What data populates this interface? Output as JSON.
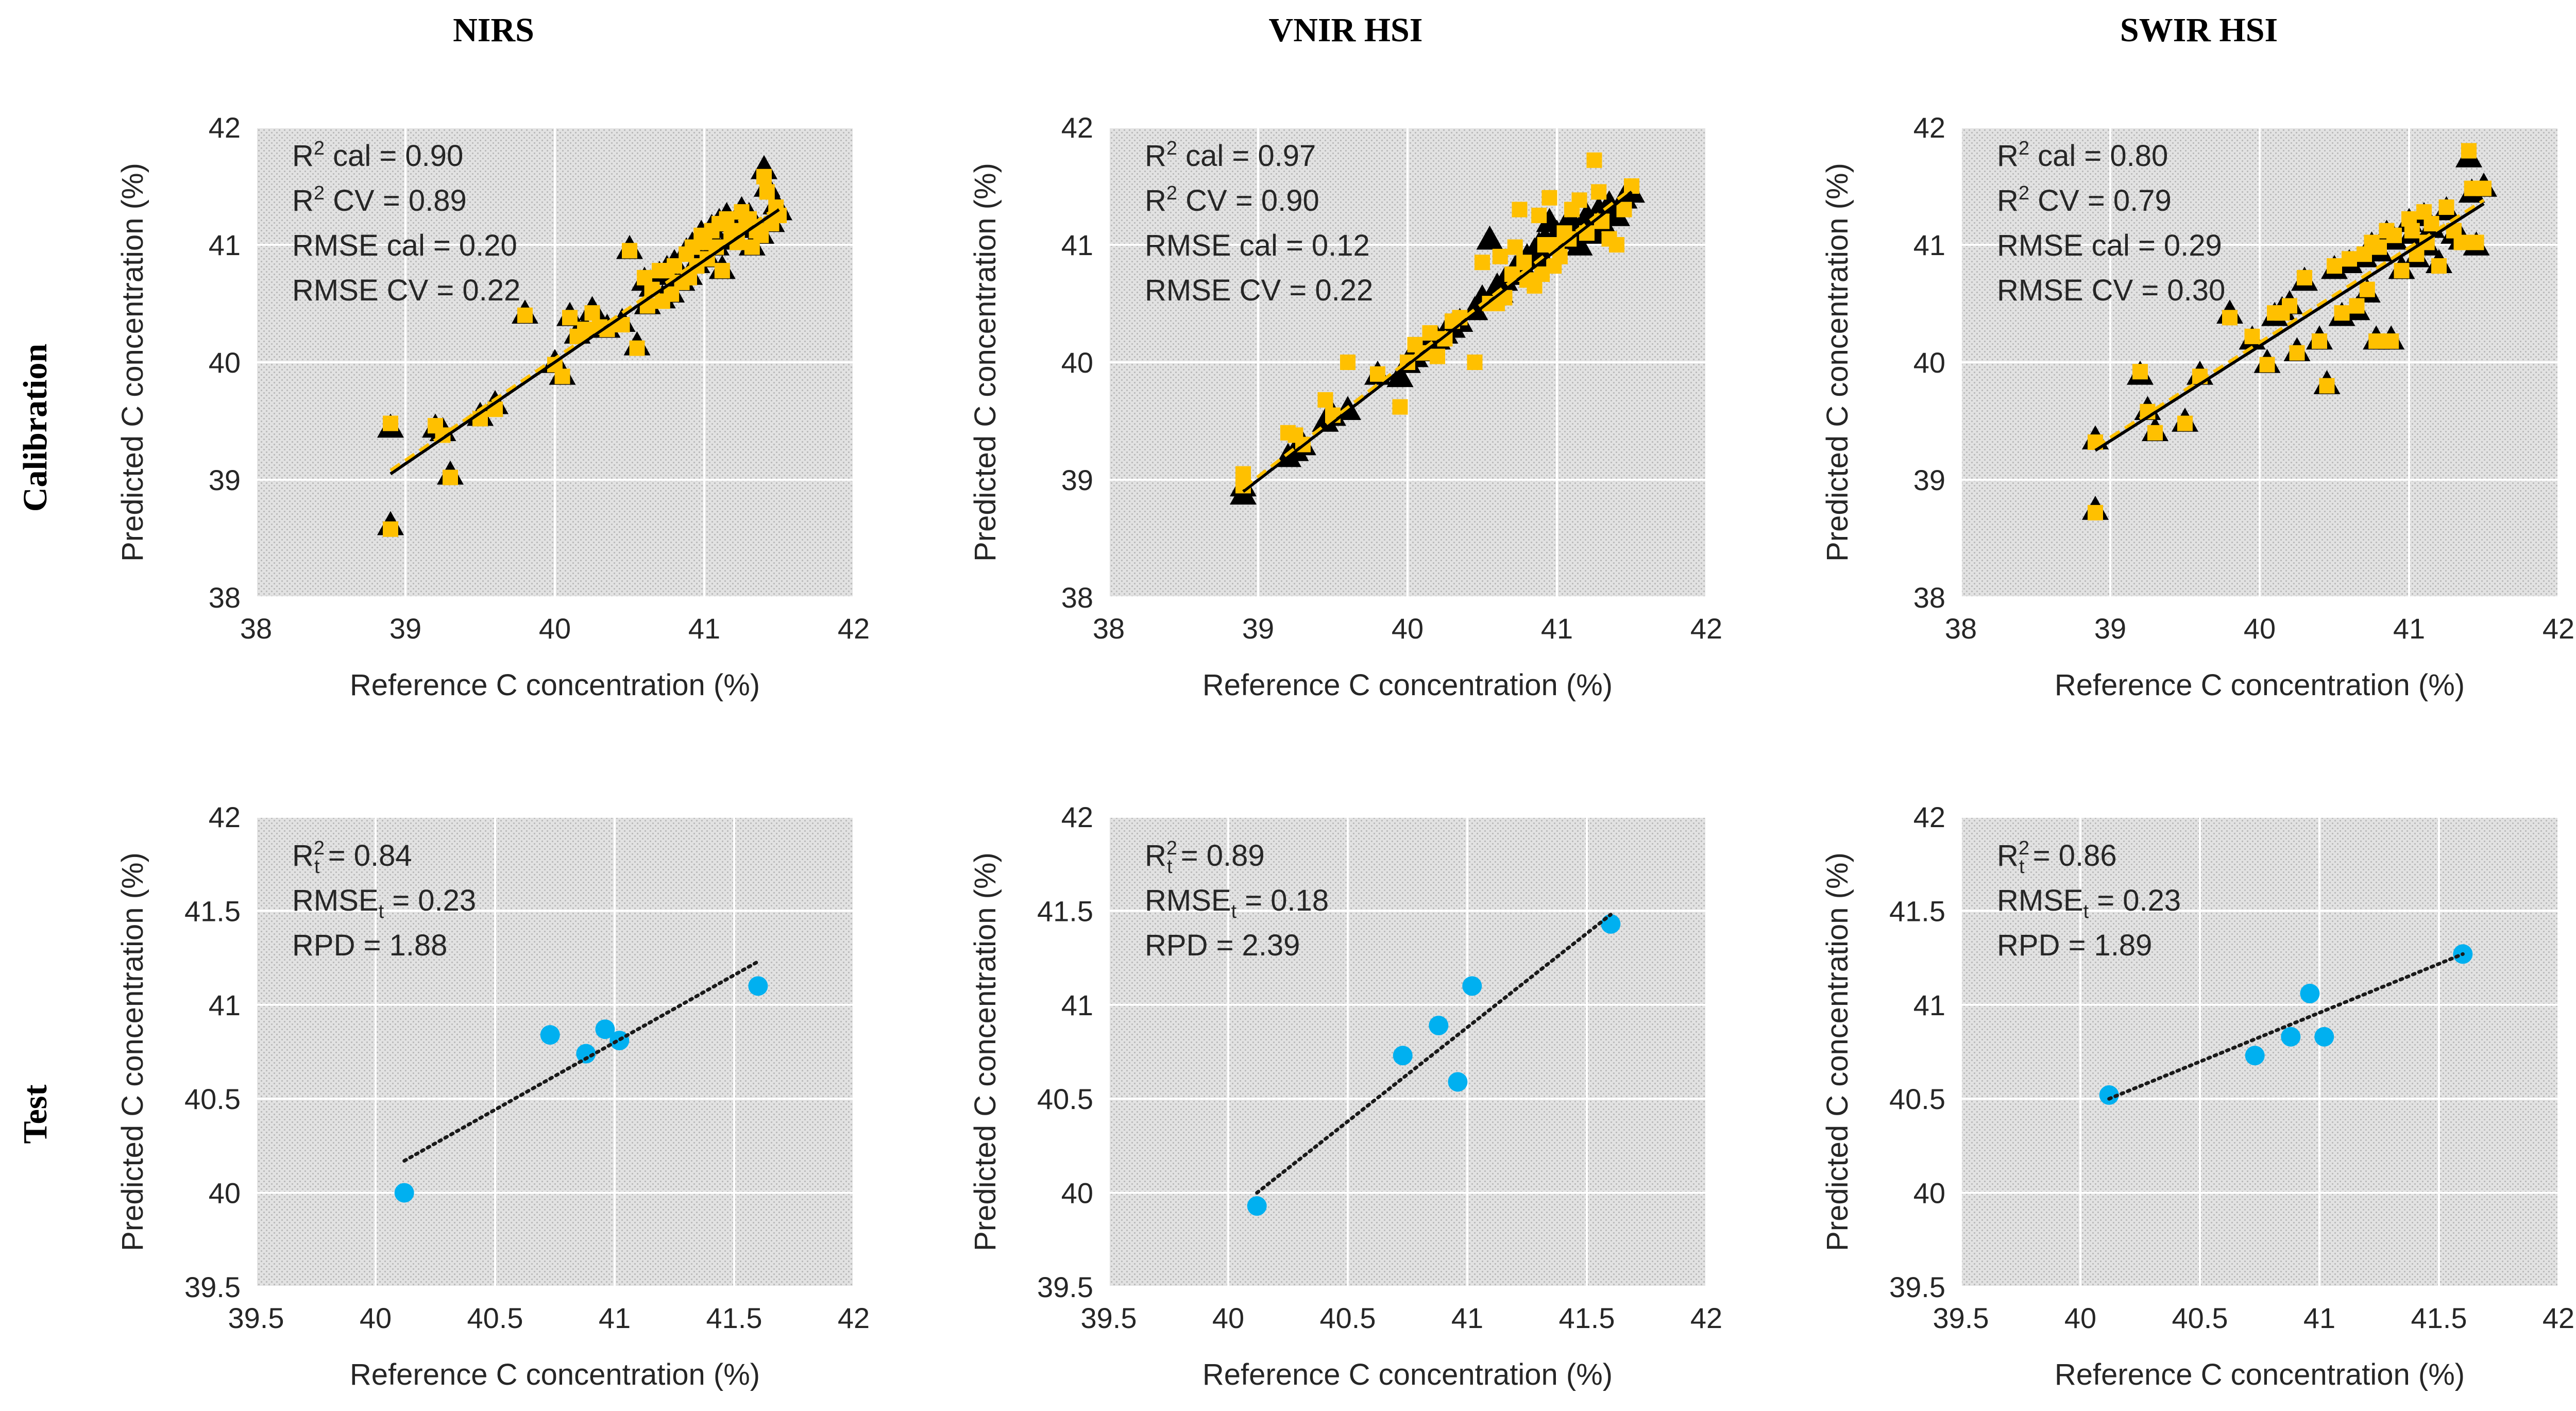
{
  "figure": {
    "column_titles": [
      "NIRS",
      "VNIR HSI",
      "SWIR HSI"
    ],
    "row_titles": [
      "Calibration",
      "Test"
    ]
  },
  "colors": {
    "cal_marker": "#000000",
    "cv_marker": "#FFC000",
    "test_marker": "#00B0F0",
    "cal_fit": "#000000",
    "cv_fit": "#FFC000",
    "test_fit": "#1a1a1a",
    "plot_bg": "#d9d9d9",
    "grid": "#ffffff",
    "text": "#262626"
  },
  "chart_data": [
    {
      "id": "nirs-calibration",
      "type": "scatter",
      "xlabel": "Reference C concentration (%)",
      "ylabel": "Predicted C concentration (%)",
      "xlim": [
        38,
        42
      ],
      "ylim": [
        38,
        42
      ],
      "xticks": [
        38,
        39,
        40,
        41,
        42
      ],
      "yticks": [
        38,
        39,
        40,
        41,
        42
      ],
      "grid": true,
      "annotations": [
        {
          "base": "R",
          "sup": "2",
          "text": " cal = 0.90"
        },
        {
          "base": "R",
          "sup": "2",
          "text": " CV = 0.89"
        },
        {
          "text": "RMSE cal = 0.20"
        },
        {
          "text": "RMSE CV = 0.22"
        }
      ],
      "x": [
        38.9,
        38.9,
        39.2,
        39.25,
        39.3,
        39.5,
        39.6,
        39.8,
        40.0,
        40.05,
        40.1,
        40.15,
        40.2,
        40.25,
        40.3,
        40.35,
        40.45,
        40.5,
        40.55,
        40.6,
        40.62,
        40.65,
        40.7,
        40.72,
        40.75,
        40.78,
        40.8,
        40.85,
        40.88,
        40.9,
        40.92,
        40.95,
        40.98,
        41.0,
        41.02,
        41.05,
        41.08,
        41.1,
        41.12,
        41.15,
        41.18,
        41.2,
        41.22,
        41.25,
        41.28,
        41.3,
        41.32,
        41.35,
        41.38,
        41.4,
        41.42,
        41.45,
        41.48,
        41.5
      ],
      "series": [
        {
          "role": "calibration",
          "marker": "triangle",
          "values": [
            38.62,
            39.45,
            39.45,
            39.42,
            39.05,
            39.55,
            39.65,
            40.42,
            40.0,
            39.9,
            40.4,
            40.25,
            40.3,
            40.45,
            40.35,
            40.3,
            40.35,
            40.97,
            40.15,
            40.7,
            40.5,
            40.65,
            40.75,
            40.55,
            40.8,
            40.6,
            40.85,
            40.7,
            40.95,
            40.75,
            41.0,
            40.85,
            41.1,
            41.05,
            40.9,
            41.15,
            41.0,
            41.2,
            40.8,
            41.25,
            41.1,
            41.15,
            41.05,
            41.3,
            41.2,
            41.25,
            41.0,
            41.15,
            41.1,
            41.65,
            41.5,
            41.2,
            41.35,
            41.3
          ]
        },
        {
          "role": "cross-validation",
          "marker": "square",
          "values": [
            38.58,
            39.48,
            39.46,
            39.38,
            39.02,
            39.52,
            39.6,
            40.4,
            39.98,
            39.88,
            40.38,
            40.22,
            40.28,
            40.42,
            40.3,
            40.28,
            40.32,
            40.95,
            40.12,
            40.72,
            40.48,
            40.62,
            40.78,
            40.52,
            40.78,
            40.58,
            40.82,
            40.68,
            40.92,
            40.72,
            40.98,
            40.82,
            41.08,
            41.02,
            40.88,
            41.12,
            40.98,
            41.18,
            40.78,
            41.22,
            41.08,
            41.12,
            41.02,
            41.28,
            41.18,
            41.22,
            40.98,
            41.12,
            41.08,
            41.58,
            41.45,
            41.18,
            41.32,
            41.25
          ]
        }
      ],
      "fit": {
        "from": [
          38.9,
          39.05
        ],
        "to": [
          41.5,
          41.3
        ]
      }
    },
    {
      "id": "vnir-calibration",
      "type": "scatter",
      "xlabel": "Reference C concentration (%)",
      "ylabel": "Predicted C concentration (%)",
      "xlim": [
        38,
        42
      ],
      "ylim": [
        38,
        42
      ],
      "xticks": [
        38,
        39,
        40,
        41,
        42
      ],
      "yticks": [
        38,
        39,
        40,
        41,
        42
      ],
      "grid": true,
      "annotations": [
        {
          "base": "R",
          "sup": "2",
          "text": " cal = 0.97"
        },
        {
          "base": "R",
          "sup": "2",
          "text": " CV = 0.90"
        },
        {
          "text": "RMSE cal = 0.12"
        },
        {
          "text": "RMSE CV = 0.22"
        }
      ],
      "x": [
        38.9,
        38.9,
        39.2,
        39.25,
        39.3,
        39.45,
        39.5,
        39.6,
        39.8,
        39.95,
        40.0,
        40.05,
        40.1,
        40.15,
        40.2,
        40.25,
        40.3,
        40.35,
        40.45,
        40.5,
        40.55,
        40.6,
        40.62,
        40.65,
        40.7,
        40.72,
        40.75,
        40.78,
        40.8,
        40.85,
        40.88,
        40.9,
        40.92,
        40.95,
        40.98,
        41.0,
        41.02,
        41.05,
        41.08,
        41.1,
        41.15,
        41.2,
        41.25,
        41.28,
        41.3,
        41.35,
        41.4,
        41.45,
        41.5
      ],
      "series": [
        {
          "role": "calibration",
          "marker": "triangle",
          "values": [
            38.88,
            38.95,
            39.2,
            39.25,
            39.3,
            39.5,
            39.55,
            39.6,
            39.9,
            39.88,
            40.0,
            40.05,
            40.1,
            40.15,
            40.2,
            40.25,
            40.3,
            40.35,
            40.45,
            40.55,
            41.05,
            40.65,
            40.6,
            40.7,
            40.75,
            40.8,
            40.85,
            40.8,
            40.9,
            40.95,
            41.0,
            40.9,
            41.05,
            41.2,
            41.0,
            41.1,
            41.05,
            41.15,
            41.1,
            41.2,
            41.0,
            41.25,
            41.1,
            41.3,
            41.2,
            41.35,
            41.25,
            41.4,
            41.45
          ]
        },
        {
          "role": "cross-validation",
          "marker": "square",
          "values": [
            39.05,
            38.95,
            39.4,
            39.38,
            39.3,
            39.68,
            39.55,
            40.0,
            39.9,
            39.62,
            40.0,
            40.15,
            40.08,
            40.25,
            40.05,
            40.2,
            40.35,
            40.38,
            40.0,
            40.85,
            40.5,
            40.5,
            40.9,
            40.55,
            40.75,
            40.98,
            41.3,
            40.85,
            40.7,
            40.65,
            41.25,
            40.75,
            41.0,
            41.4,
            40.82,
            41.0,
            40.9,
            41.1,
            41.05,
            41.3,
            41.38,
            41.1,
            41.72,
            41.45,
            41.2,
            41.05,
            41.0,
            41.3,
            41.5
          ]
        }
      ],
      "fit": {
        "from": [
          38.9,
          38.9
        ],
        "to": [
          41.5,
          41.45
        ]
      }
    },
    {
      "id": "swir-calibration",
      "type": "scatter",
      "xlabel": "Reference C concentration (%)",
      "ylabel": "Predicted C concentration (%)",
      "xlim": [
        38,
        42
      ],
      "ylim": [
        38,
        42
      ],
      "xticks": [
        38,
        39,
        40,
        41,
        42
      ],
      "yticks": [
        38,
        39,
        40,
        41,
        42
      ],
      "grid": true,
      "annotations": [
        {
          "base": "R",
          "sup": "2",
          "text": " cal = 0.80"
        },
        {
          "base": "R",
          "sup": "2",
          "text": " CV = 0.79"
        },
        {
          "text": "RMSE cal = 0.29"
        },
        {
          "text": "RMSE CV = 0.30"
        }
      ],
      "x": [
        38.9,
        38.9,
        39.2,
        39.25,
        39.3,
        39.5,
        39.6,
        39.8,
        39.95,
        40.05,
        40.1,
        40.15,
        40.2,
        40.25,
        40.3,
        40.4,
        40.45,
        40.5,
        40.55,
        40.6,
        40.65,
        40.7,
        40.72,
        40.75,
        40.78,
        40.8,
        40.85,
        40.88,
        40.9,
        40.95,
        41.0,
        41.02,
        41.05,
        41.1,
        41.12,
        41.15,
        41.2,
        41.25,
        41.3,
        41.35,
        41.4,
        41.42,
        41.45,
        41.5
      ],
      "series": [
        {
          "role": "calibration",
          "marker": "triangle",
          "values": [
            38.75,
            39.35,
            39.9,
            39.6,
            39.42,
            39.5,
            39.9,
            40.42,
            40.2,
            40.0,
            40.4,
            40.45,
            40.5,
            40.1,
            40.7,
            40.2,
            39.82,
            40.8,
            40.4,
            40.85,
            40.45,
            40.9,
            40.6,
            41.0,
            40.2,
            40.95,
            41.1,
            40.2,
            41.05,
            40.8,
            41.2,
            41.1,
            40.9,
            41.25,
            41.0,
            41.15,
            40.85,
            41.3,
            41.1,
            41.05,
            41.75,
            41.45,
            41.0,
            41.5
          ]
        },
        {
          "role": "cross-validation",
          "marker": "square",
          "values": [
            38.72,
            39.32,
            39.92,
            39.58,
            39.4,
            39.48,
            39.88,
            40.38,
            40.22,
            39.98,
            40.42,
            40.42,
            40.48,
            40.08,
            40.72,
            40.18,
            39.8,
            40.82,
            40.42,
            40.88,
            40.48,
            40.92,
            40.62,
            41.02,
            40.18,
            40.98,
            41.12,
            40.18,
            41.08,
            40.78,
            41.22,
            41.12,
            40.92,
            41.28,
            41.02,
            41.18,
            40.82,
            41.32,
            41.12,
            41.02,
            41.8,
            41.48,
            41.02,
            41.48
          ]
        }
      ],
      "fit": {
        "from": [
          38.9,
          39.25
        ],
        "to": [
          41.5,
          41.35
        ]
      }
    },
    {
      "id": "nirs-test",
      "type": "scatter",
      "xlabel": "Reference C concentration (%)",
      "ylabel": "Predicted C concentration (%)",
      "xlim": [
        39.5,
        42
      ],
      "ylim": [
        39.5,
        42
      ],
      "xticks": [
        39.5,
        40,
        40.5,
        41,
        41.5,
        42
      ],
      "yticks": [
        39.5,
        40,
        40.5,
        41,
        41.5,
        42
      ],
      "grid": true,
      "annotations": [
        {
          "base": "R",
          "sup": "2",
          "sub": "t",
          "text": " = 0.84"
        },
        {
          "base": "RMSE",
          "sub": "t",
          "text": " = 0.23"
        },
        {
          "text": "RPD = 1.88"
        }
      ],
      "x": [
        40.12,
        40.73,
        40.88,
        40.96,
        41.02,
        41.6
      ],
      "series": [
        {
          "role": "test",
          "marker": "circle",
          "values": [
            40.0,
            40.84,
            40.74,
            40.87,
            40.81,
            41.1
          ]
        }
      ],
      "fit": {
        "from": [
          40.12,
          40.17
        ],
        "to": [
          41.6,
          41.23
        ]
      }
    },
    {
      "id": "vnir-test",
      "type": "scatter",
      "xlabel": "Reference C concentration (%)",
      "ylabel": "Predicted C concentration (%)",
      "xlim": [
        39.5,
        42
      ],
      "ylim": [
        39.5,
        42
      ],
      "xticks": [
        39.5,
        40,
        40.5,
        41,
        41.5,
        42
      ],
      "yticks": [
        39.5,
        40,
        40.5,
        41,
        41.5,
        42
      ],
      "grid": true,
      "annotations": [
        {
          "base": "R",
          "sup": "2",
          "sub": "t",
          "text": " = 0.89"
        },
        {
          "base": "RMSE",
          "sub": "t",
          "text": " = 0.18"
        },
        {
          "text": "RPD = 2.39"
        }
      ],
      "x": [
        40.12,
        40.73,
        40.88,
        40.96,
        41.02,
        41.6
      ],
      "series": [
        {
          "role": "test",
          "marker": "circle",
          "values": [
            39.93,
            40.73,
            40.89,
            40.59,
            41.1,
            41.43
          ]
        }
      ],
      "fit": {
        "from": [
          40.12,
          40.0
        ],
        "to": [
          41.6,
          41.48
        ]
      }
    },
    {
      "id": "swir-test",
      "type": "scatter",
      "xlabel": "Reference C concentration (%)",
      "ylabel": "Predicted C concentration (%)",
      "xlim": [
        39.5,
        42
      ],
      "ylim": [
        39.5,
        42
      ],
      "xticks": [
        39.5,
        40,
        40.5,
        41,
        41.5,
        42
      ],
      "yticks": [
        39.5,
        40,
        40.5,
        41,
        41.5,
        42
      ],
      "grid": true,
      "annotations": [
        {
          "base": "R",
          "sup": "2",
          "sub": "t",
          "text": " = 0.86"
        },
        {
          "base": "RMSE",
          "sub": "t",
          "text": " = 0.23"
        },
        {
          "text": "RPD = 1.89"
        }
      ],
      "x": [
        40.12,
        40.73,
        40.88,
        40.96,
        41.02,
        41.6
      ],
      "series": [
        {
          "role": "test",
          "marker": "circle",
          "values": [
            40.52,
            40.73,
            40.83,
            41.06,
            40.83,
            41.27
          ]
        }
      ],
      "fit": {
        "from": [
          40.12,
          40.5
        ],
        "to": [
          41.6,
          41.27
        ]
      }
    }
  ]
}
